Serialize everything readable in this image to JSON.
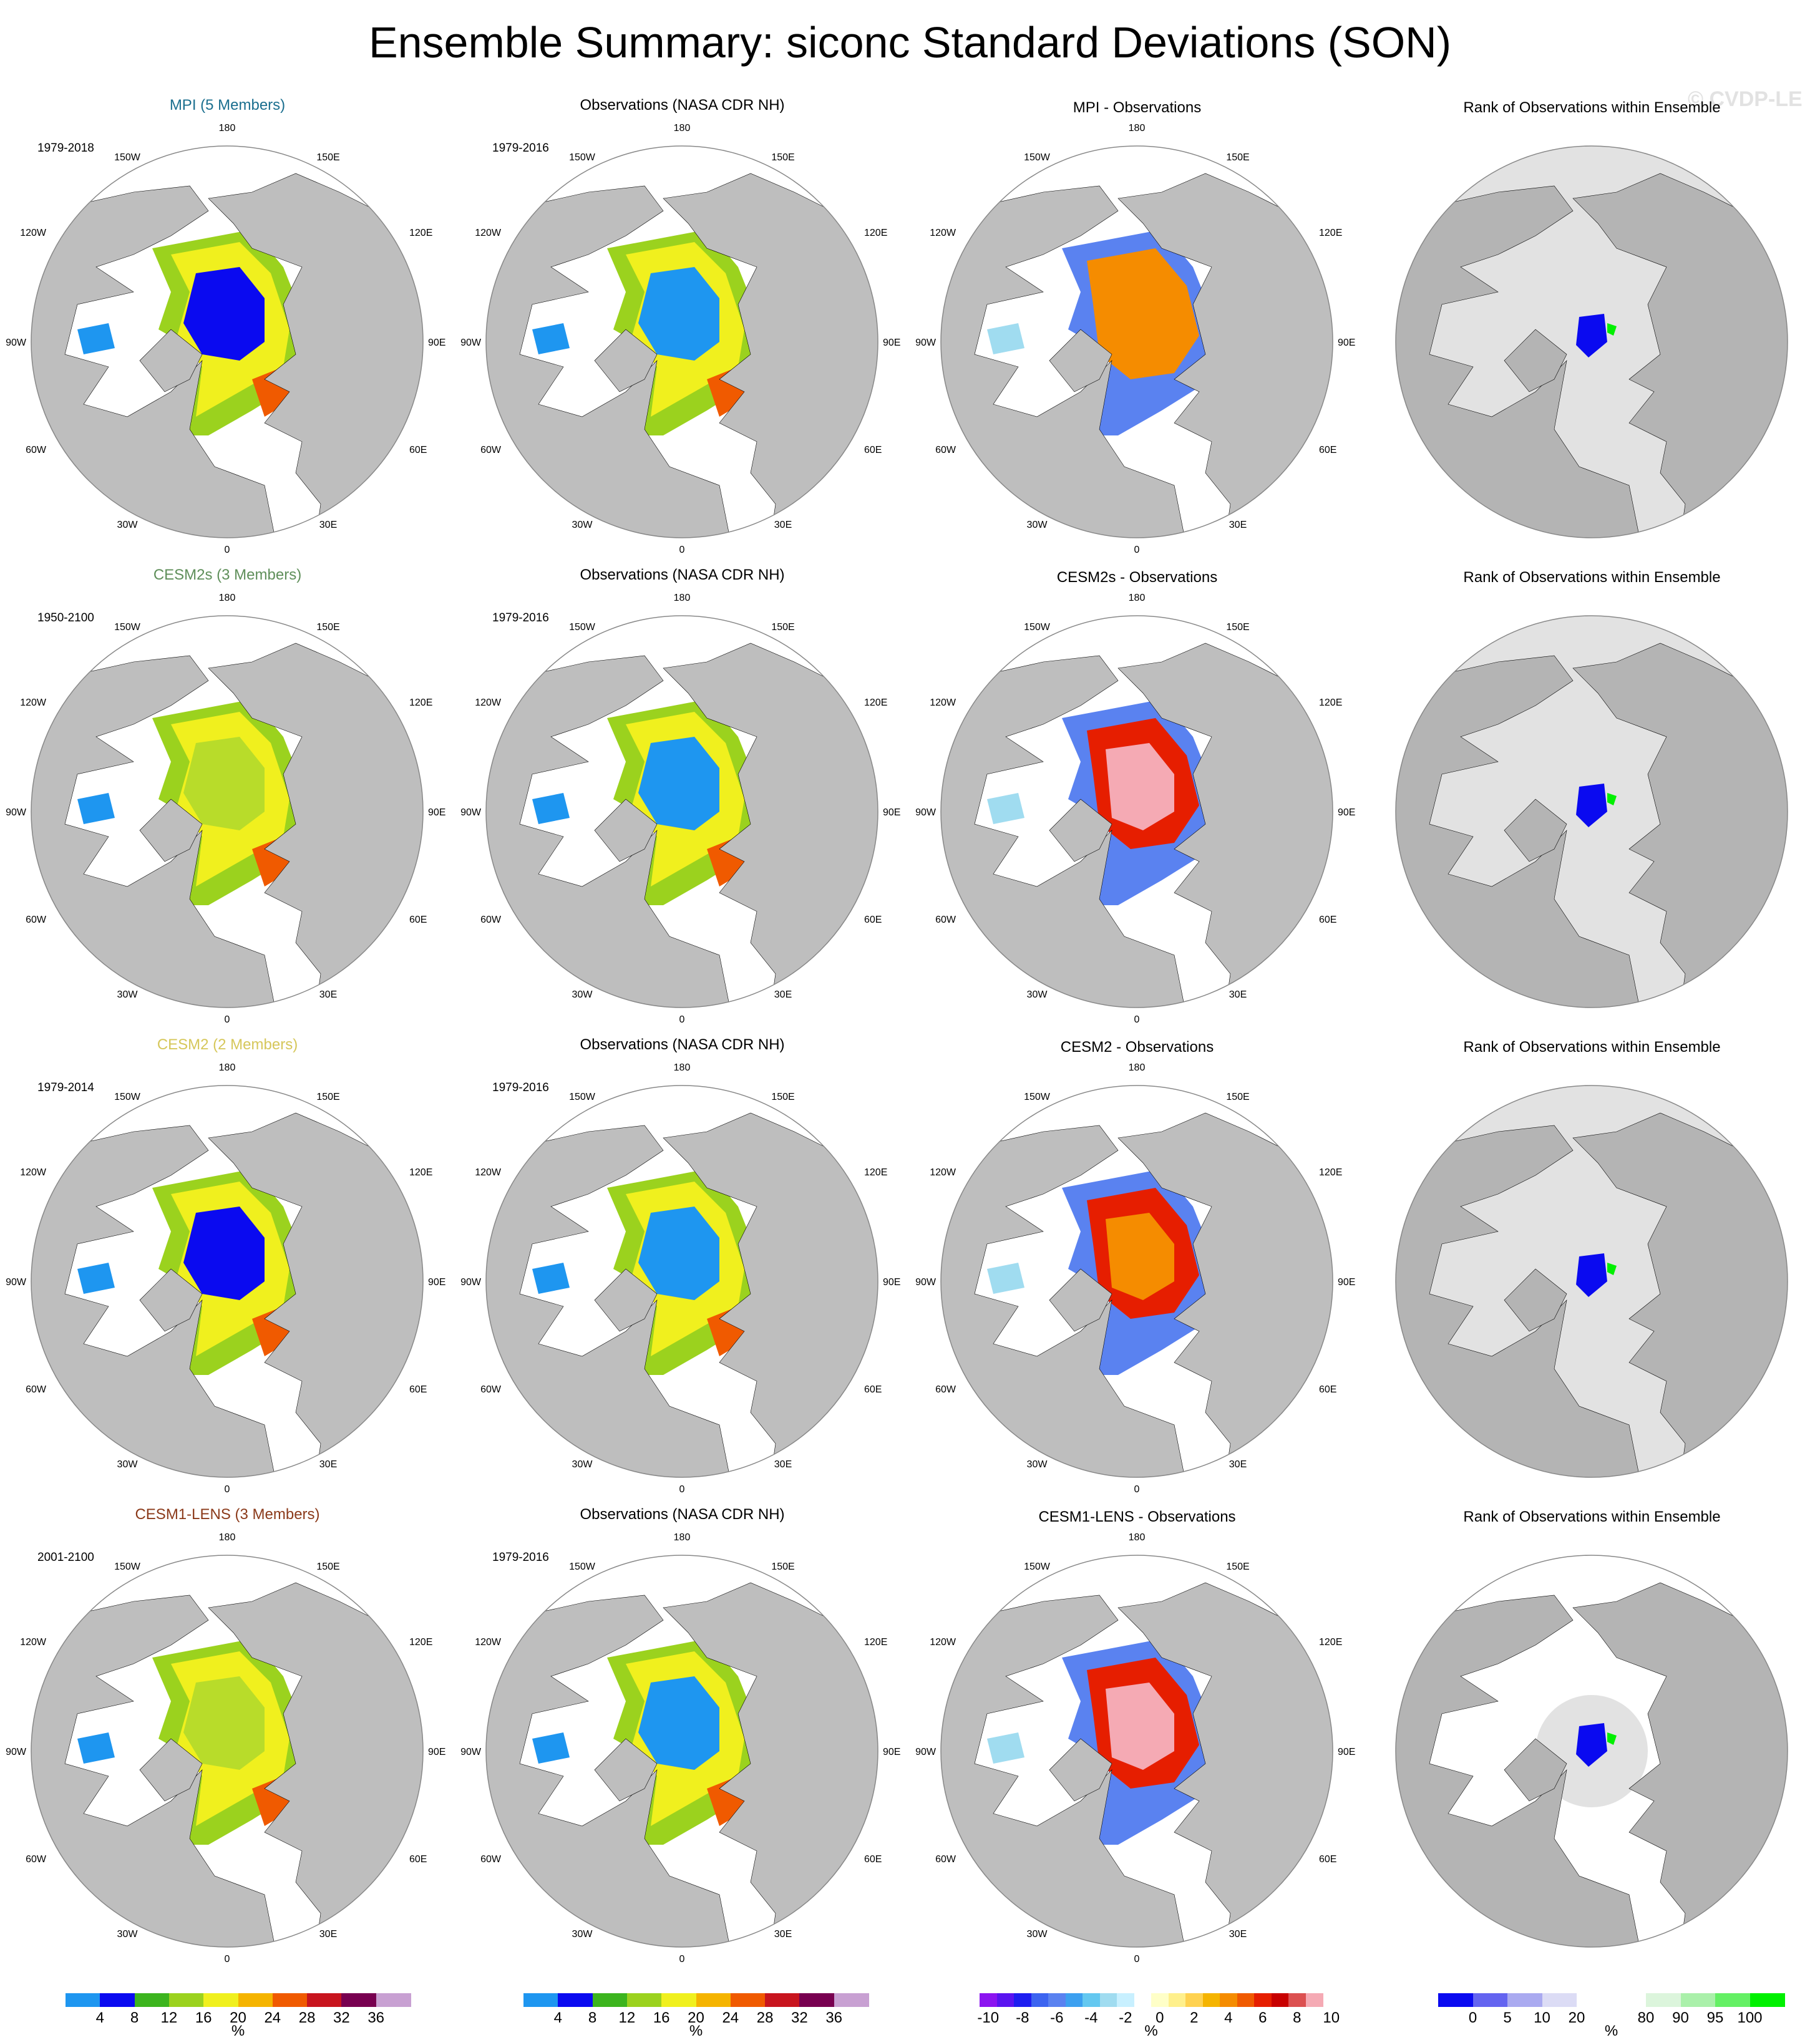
{
  "title": "Ensemble Summary: siconc Standard Deviations (SON)",
  "watermark": "© CVDP-LE",
  "map_labels": {
    "lon_180": "180",
    "lon_150W": "150W",
    "lon_150E": "150E",
    "lon_120W": "120W",
    "lon_120E": "120E",
    "lon_90W": "90W",
    "lon_90E": "90E",
    "lon_60W": "60W",
    "lon_60E": "60E",
    "lon_30W": "30W",
    "lon_30E": "30E",
    "lon_0": "0"
  },
  "rows": [
    {
      "model": {
        "title": "MPI (5 Members)",
        "color": "#1b6f8f",
        "period": "1979-2018"
      },
      "obs": {
        "title": "Observations (NASA CDR NH)",
        "period": "1979-2016"
      },
      "diff": {
        "title": "MPI - Observations"
      },
      "rank": {
        "title": "Rank of Observations within Ensemble"
      }
    },
    {
      "model": {
        "title": "CESM2s (3 Members)",
        "color": "#5f8f5a",
        "period": "1950-2100"
      },
      "obs": {
        "title": "Observations (NASA CDR NH)",
        "period": "1979-2016"
      },
      "diff": {
        "title": "CESM2s - Observations"
      },
      "rank": {
        "title": "Rank of Observations within Ensemble"
      }
    },
    {
      "model": {
        "title": "CESM2 (2 Members)",
        "color": "#d6c75a",
        "period": "1979-2014"
      },
      "obs": {
        "title": "Observations (NASA CDR NH)",
        "period": "1979-2016"
      },
      "diff": {
        "title": "CESM2 - Observations"
      },
      "rank": {
        "title": "Rank of Observations within Ensemble"
      }
    },
    {
      "model": {
        "title": "CESM1-LENS (3 Members)",
        "color": "#8b3a1a",
        "period": "2001-2100"
      },
      "obs": {
        "title": "Observations (NASA CDR NH)",
        "period": "1979-2016"
      },
      "diff": {
        "title": "CESM1-LENS - Observations"
      },
      "rank": {
        "title": "Rank of Observations within Ensemble"
      }
    }
  ],
  "colorbars": [
    {
      "unit": "%",
      "colors": [
        "#1e96f0",
        "#0a0af0",
        "#3cb41e",
        "#9bd21e",
        "#f0f01e",
        "#f5b400",
        "#f05a00",
        "#c8141e",
        "#780050",
        "#c8a0d2"
      ],
      "ticks": [
        "4",
        "8",
        "12",
        "16",
        "20",
        "24",
        "28",
        "32",
        "36"
      ]
    },
    {
      "unit": "%",
      "colors": [
        "#1e96f0",
        "#0a0af0",
        "#3cb41e",
        "#9bd21e",
        "#f0f01e",
        "#f5b400",
        "#f05a00",
        "#c8141e",
        "#780050",
        "#c8a0d2"
      ],
      "ticks": [
        "4",
        "8",
        "12",
        "16",
        "20",
        "24",
        "28",
        "32",
        "36"
      ]
    },
    {
      "unit": "%",
      "colors": [
        "#8c14f0",
        "#5a14f0",
        "#1e1ef0",
        "#3c64f0",
        "#5a82f0",
        "#3ca0f0",
        "#64c8f0",
        "#a0dcf0",
        "#c8f0ff",
        "#ffffff",
        "#ffffc8",
        "#fff08c",
        "#ffd250",
        "#f5b400",
        "#f58c00",
        "#f05a00",
        "#e61e00",
        "#c80000",
        "#dc5050",
        "#f5aab4"
      ],
      "ticks": [
        "-10",
        "-8",
        "-6",
        "-4",
        "-2",
        "0",
        "2",
        "4",
        "6",
        "8",
        "10"
      ]
    },
    {
      "unit": "%",
      "colors": [
        "#0a0af0",
        "#6464f0",
        "#aaaaf0",
        "#dcdcf5",
        "#ffffff",
        "#ffffff",
        "#dcf5dc",
        "#aaf0aa",
        "#64f064",
        "#00f000"
      ],
      "ticks": [
        "0",
        "5",
        "10",
        "20",
        "80",
        "90",
        "95",
        "100"
      ]
    }
  ]
}
